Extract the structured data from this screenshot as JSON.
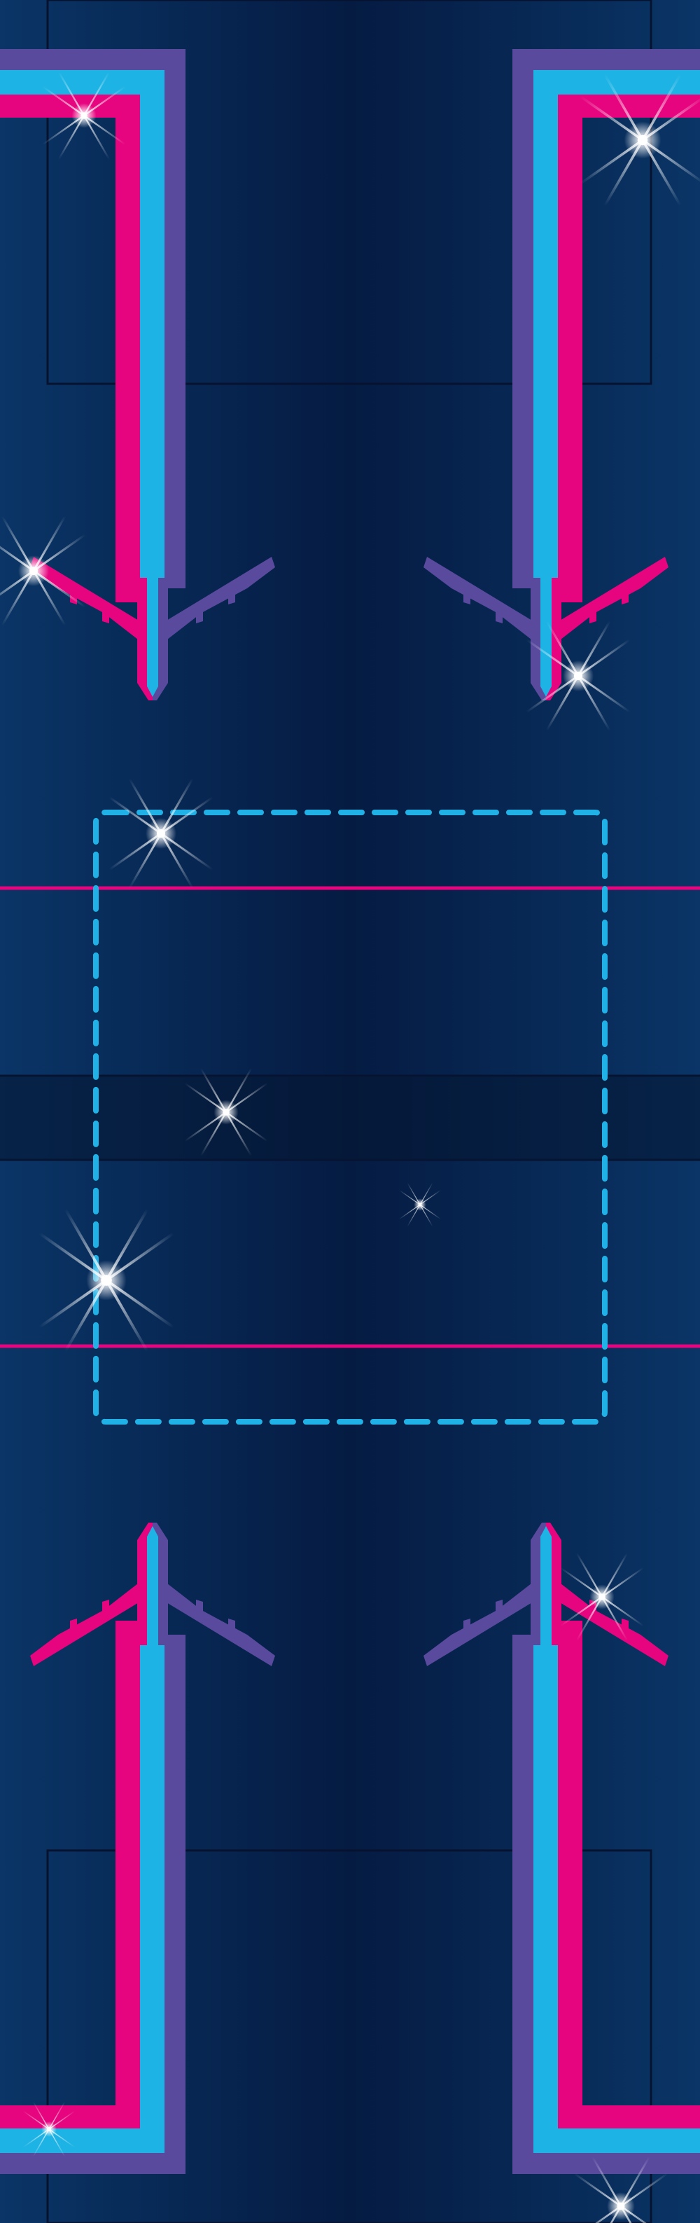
{
  "colors": {
    "background_deep": "#04163a",
    "background_mid": "#0a2b57",
    "panel_stroke": "#071433",
    "stripe_magenta": "#e6057f",
    "stripe_cyan": "#1db3e4",
    "stripe_purple": "#5a4a9e",
    "dashed_box": "#20b2e6",
    "horizontal_rule": "#e6057f",
    "sparkle": "#ffffff"
  },
  "icons": {
    "plane": "airplane-icon",
    "sparkle": "sparkle-icon"
  },
  "airplanes": [
    {
      "name": "top-left",
      "direction": "down"
    },
    {
      "name": "top-right",
      "direction": "down"
    },
    {
      "name": "bottom-left",
      "direction": "up"
    },
    {
      "name": "bottom-right",
      "direction": "up"
    }
  ],
  "sparkle_count": 11
}
